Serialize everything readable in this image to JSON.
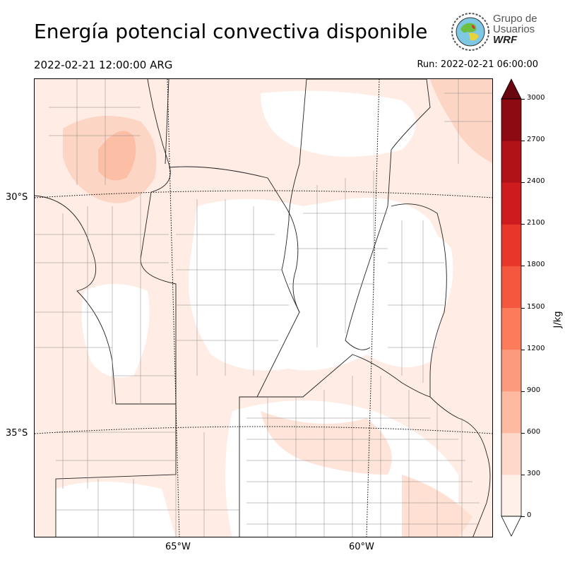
{
  "title": "Energía potencial convectiva disponible",
  "valid_time": "2022-02-21 12:00:00 ARG",
  "run_time": "Run: 2022-02-21 06:00:00",
  "logo": {
    "line1": "Grupo de",
    "line2": "Usuarios",
    "line3": "WRF"
  },
  "map": {
    "lat_labels": [
      "30°S",
      "35°S"
    ],
    "lon_labels": [
      "65°W",
      "60°W"
    ]
  },
  "colorbar": {
    "unit": "J/kg",
    "ticks": [
      "0",
      "300",
      "600",
      "900",
      "1200",
      "1500",
      "1800",
      "2100",
      "2400",
      "2700",
      "3000"
    ],
    "colors": [
      "#fff0ea",
      "#fed9ca",
      "#fdbaa0",
      "#fc9a7c",
      "#fb7b5b",
      "#f5573e",
      "#e9362b",
      "#cd1b1e",
      "#b01217",
      "#8d0a13",
      "#6a0610"
    ]
  }
}
